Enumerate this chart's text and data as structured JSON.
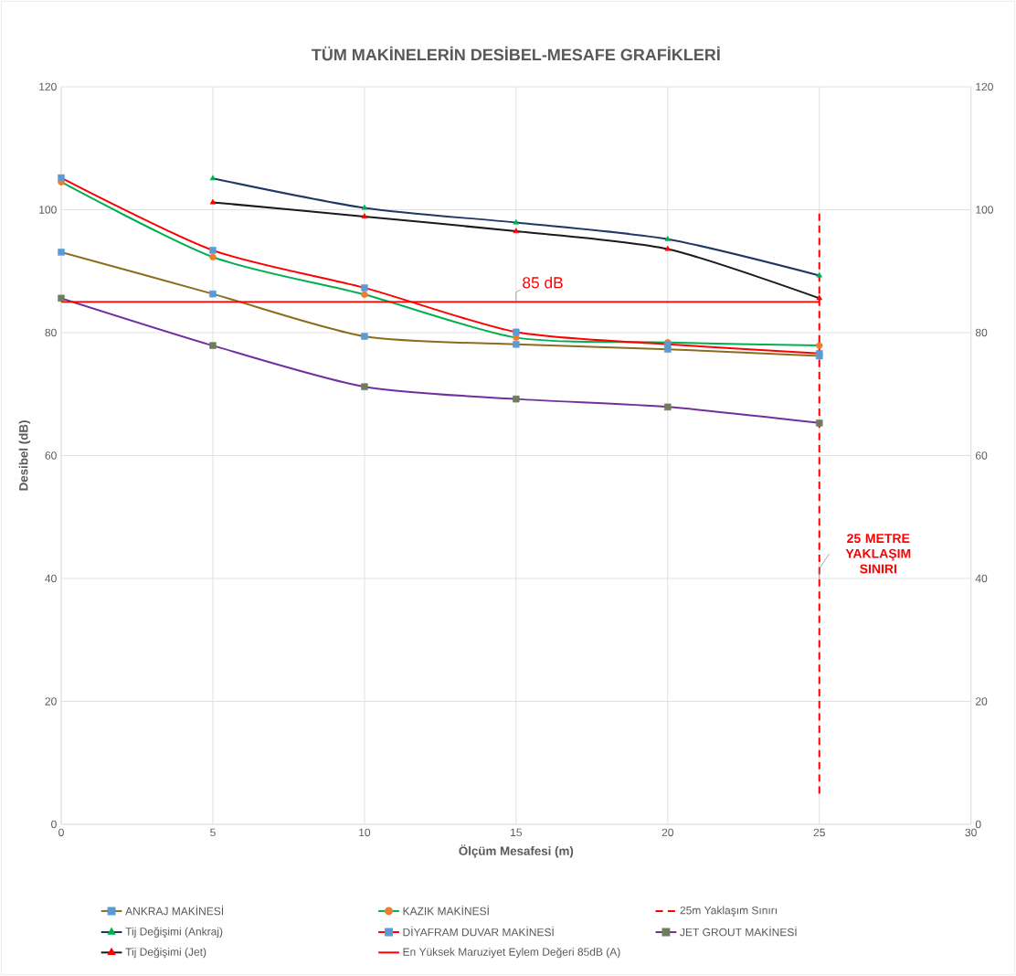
{
  "chart_data": {
    "type": "line",
    "title": "TÜM MAKİNELERİN DESİBEL-MESAFE GRAFİKLERİ",
    "xlabel": "Ölçüm Mesafesi (m)",
    "ylabel": "Desibel (dB)",
    "x": [
      0,
      5,
      10,
      15,
      20,
      25
    ],
    "series": [
      {
        "name": "ANKRAJ MAKİNESİ",
        "color": "#8c6d1e",
        "marker": "square",
        "colors": [
          "#5b9bd5",
          "#5b9bd5",
          "#5b9bd5",
          "#5b9bd5",
          "#5b9bd5",
          "#5b9bd5"
        ],
        "values": [
          93.1,
          86.3,
          79.4,
          78.1,
          77.3,
          76.2
        ]
      },
      {
        "name": "KAZIK MAKİNESİ",
        "color": "#00b050",
        "marker": "circle",
        "colors": [
          "#ed7d31",
          "#ed7d31",
          "#ed7d31",
          "#ed7d31",
          "#ed7d31",
          "#ed7d31"
        ],
        "values": [
          104.5,
          92.3,
          86.2,
          79.2,
          78.4,
          77.9
        ]
      },
      {
        "name": "25m Yaklaşım Sınırı",
        "color": "#ff0000",
        "marker": "none",
        "line_style": "dashed",
        "x": [
          25,
          25
        ],
        "values": [
          5,
          100
        ]
      },
      {
        "name": "Tij Değişimi (Ankraj)",
        "color": "#203864",
        "marker": "triangle",
        "colors": [
          "#00b050",
          "#00b050",
          "#00b050",
          "#00b050",
          "#00b050"
        ],
        "x": [
          5,
          10,
          15,
          20,
          25
        ],
        "values": [
          105.1,
          100.3,
          97.9,
          95.2,
          89.3
        ]
      },
      {
        "name": "DİYAFRAM DUVAR  MAKİNESİ",
        "color": "#ff0000",
        "marker": "square",
        "colors": [
          "#5b9bd5",
          "#5b9bd5",
          "#5b9bd5",
          "#5b9bd5",
          "#5b9bd5",
          "#5b9bd5"
        ],
        "values": [
          105.2,
          93.4,
          87.3,
          80.1,
          78.1,
          76.6
        ]
      },
      {
        "name": "JET GROUT MAKİNESİ",
        "color": "#7030a0",
        "marker": "square",
        "colors": [
          "#6f7d5a",
          "#6f7d5a",
          "#6f7d5a",
          "#6f7d5a",
          "#6f7d5a",
          "#6f7d5a"
        ],
        "values": [
          85.6,
          77.9,
          71.2,
          69.2,
          67.9,
          65.3
        ]
      },
      {
        "name": "Tij Değişimi (Jet)",
        "color": "#1a1a1a",
        "marker": "triangle",
        "colors": [
          "#ff0000",
          "#ff0000",
          "#ff0000",
          "#ff0000",
          "#ff0000"
        ],
        "x": [
          5,
          10,
          15,
          20,
          25
        ],
        "values": [
          101.2,
          98.9,
          96.5,
          93.6,
          85.6
        ]
      },
      {
        "name": "En Yüksek Maruziyet Eylem Değeri 85dB (A)",
        "color": "#ff0000",
        "marker": "none",
        "x": [
          0,
          25
        ],
        "values": [
          85,
          85
        ]
      }
    ],
    "annotations": [
      {
        "text": "85 dB",
        "x": 15,
        "y": 85
      },
      {
        "text": "25 METRE YAKLAŞIM SINIRI",
        "x": 25,
        "y": 40
      }
    ],
    "xlim": [
      0,
      30
    ],
    "xticks": [
      0,
      5,
      10,
      15,
      20,
      25,
      30
    ],
    "ylim": [
      0,
      120
    ],
    "yticks": [
      0,
      20,
      40,
      60,
      80,
      100,
      120
    ],
    "y2lim": [
      0,
      120
    ],
    "y2ticks": [
      0,
      20,
      40,
      60,
      80,
      100,
      120
    ],
    "grid": true,
    "legend": "bottom"
  }
}
